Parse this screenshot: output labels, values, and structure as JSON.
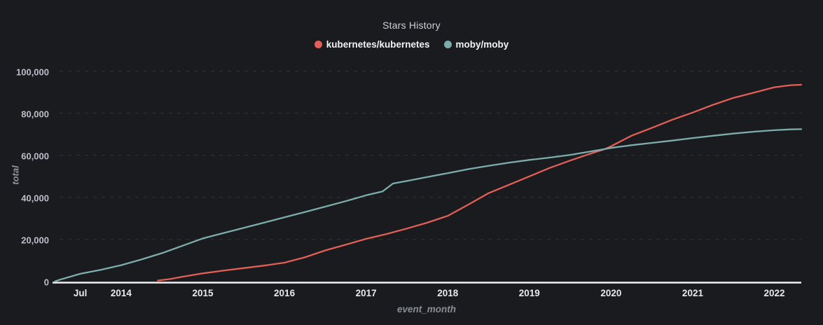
{
  "chart": {
    "title": "Stars History",
    "xlabel": "event_month",
    "ylabel": "total"
  },
  "colors": {
    "background": "#1a1b1e",
    "axis_line": "#f0f0f0",
    "gridline": "rgba(210,214,222,0.13)",
    "kubernetes_red": "#e25f57",
    "moby_teal": "#7cadac"
  },
  "chart_data": {
    "type": "line",
    "title": "Stars History",
    "xlabel": "event_month",
    "ylabel": "total",
    "x_unit": "decimal_year",
    "xlim": [
      2013.16,
      2022.33
    ],
    "ylim": [
      0,
      100000
    ],
    "grid": "horizontal dashed lines at each y tick",
    "legend_position": "top-center",
    "x_ticks": [
      {
        "label": "Jul",
        "value": 2013.5
      },
      {
        "label": "2014",
        "value": 2014
      },
      {
        "label": "2015",
        "value": 2015
      },
      {
        "label": "2016",
        "value": 2016
      },
      {
        "label": "2017",
        "value": 2017
      },
      {
        "label": "2018",
        "value": 2018
      },
      {
        "label": "2019",
        "value": 2019
      },
      {
        "label": "2020",
        "value": 2020
      },
      {
        "label": "2021",
        "value": 2021
      },
      {
        "label": "2022",
        "value": 2022
      }
    ],
    "y_ticks": [
      {
        "label": "0",
        "value": 0
      },
      {
        "label": "20,000",
        "value": 20000
      },
      {
        "label": "40,000",
        "value": 40000
      },
      {
        "label": "60,000",
        "value": 60000
      },
      {
        "label": "80,000",
        "value": 80000
      },
      {
        "label": "100,000",
        "value": 100000
      }
    ],
    "series": [
      {
        "name": "kubernetes/kubernetes",
        "color": "#e25f57",
        "points": [
          [
            2014.45,
            500
          ],
          [
            2014.6,
            1200
          ],
          [
            2014.75,
            2300
          ],
          [
            2015.0,
            3900
          ],
          [
            2015.25,
            5200
          ],
          [
            2015.5,
            6400
          ],
          [
            2015.75,
            7600
          ],
          [
            2016.0,
            9000
          ],
          [
            2016.25,
            11500
          ],
          [
            2016.5,
            14800
          ],
          [
            2016.75,
            17500
          ],
          [
            2017.0,
            20300
          ],
          [
            2017.25,
            22600
          ],
          [
            2017.5,
            25200
          ],
          [
            2017.75,
            28000
          ],
          [
            2018.0,
            31200
          ],
          [
            2018.25,
            36500
          ],
          [
            2018.5,
            42000
          ],
          [
            2018.75,
            46000
          ],
          [
            2019.0,
            50000
          ],
          [
            2019.25,
            54000
          ],
          [
            2019.5,
            57500
          ],
          [
            2019.75,
            60800
          ],
          [
            2019.92,
            62900
          ],
          [
            2020.0,
            64300
          ],
          [
            2020.25,
            69300
          ],
          [
            2020.5,
            73000
          ],
          [
            2020.75,
            76900
          ],
          [
            2021.0,
            80300
          ],
          [
            2021.25,
            84000
          ],
          [
            2021.5,
            87300
          ],
          [
            2021.75,
            89800
          ],
          [
            2022.0,
            92300
          ],
          [
            2022.2,
            93300
          ],
          [
            2022.33,
            93500
          ]
        ]
      },
      {
        "name": "moby/moby",
        "color": "#7cadac",
        "points": [
          [
            2013.19,
            100
          ],
          [
            2013.25,
            900
          ],
          [
            2013.33,
            1800
          ],
          [
            2013.5,
            3700
          ],
          [
            2013.75,
            5600
          ],
          [
            2014.0,
            7800
          ],
          [
            2014.25,
            10500
          ],
          [
            2014.5,
            13500
          ],
          [
            2014.75,
            17000
          ],
          [
            2015.0,
            20500
          ],
          [
            2015.25,
            23000
          ],
          [
            2015.5,
            25500
          ],
          [
            2015.75,
            28000
          ],
          [
            2016.0,
            30500
          ],
          [
            2016.25,
            33000
          ],
          [
            2016.5,
            35600
          ],
          [
            2016.75,
            38200
          ],
          [
            2017.0,
            41000
          ],
          [
            2017.2,
            42800
          ],
          [
            2017.33,
            46600
          ],
          [
            2017.5,
            47800
          ],
          [
            2017.75,
            49700
          ],
          [
            2018.0,
            51500
          ],
          [
            2018.25,
            53400
          ],
          [
            2018.5,
            55000
          ],
          [
            2018.75,
            56500
          ],
          [
            2019.0,
            57800
          ],
          [
            2019.25,
            58900
          ],
          [
            2019.5,
            60200
          ],
          [
            2019.75,
            61800
          ],
          [
            2020.0,
            63500
          ],
          [
            2020.25,
            64800
          ],
          [
            2020.5,
            65900
          ],
          [
            2020.75,
            67000
          ],
          [
            2021.0,
            68200
          ],
          [
            2021.25,
            69300
          ],
          [
            2021.5,
            70300
          ],
          [
            2021.75,
            71200
          ],
          [
            2022.0,
            71900
          ],
          [
            2022.2,
            72300
          ],
          [
            2022.33,
            72400
          ]
        ]
      }
    ]
  }
}
